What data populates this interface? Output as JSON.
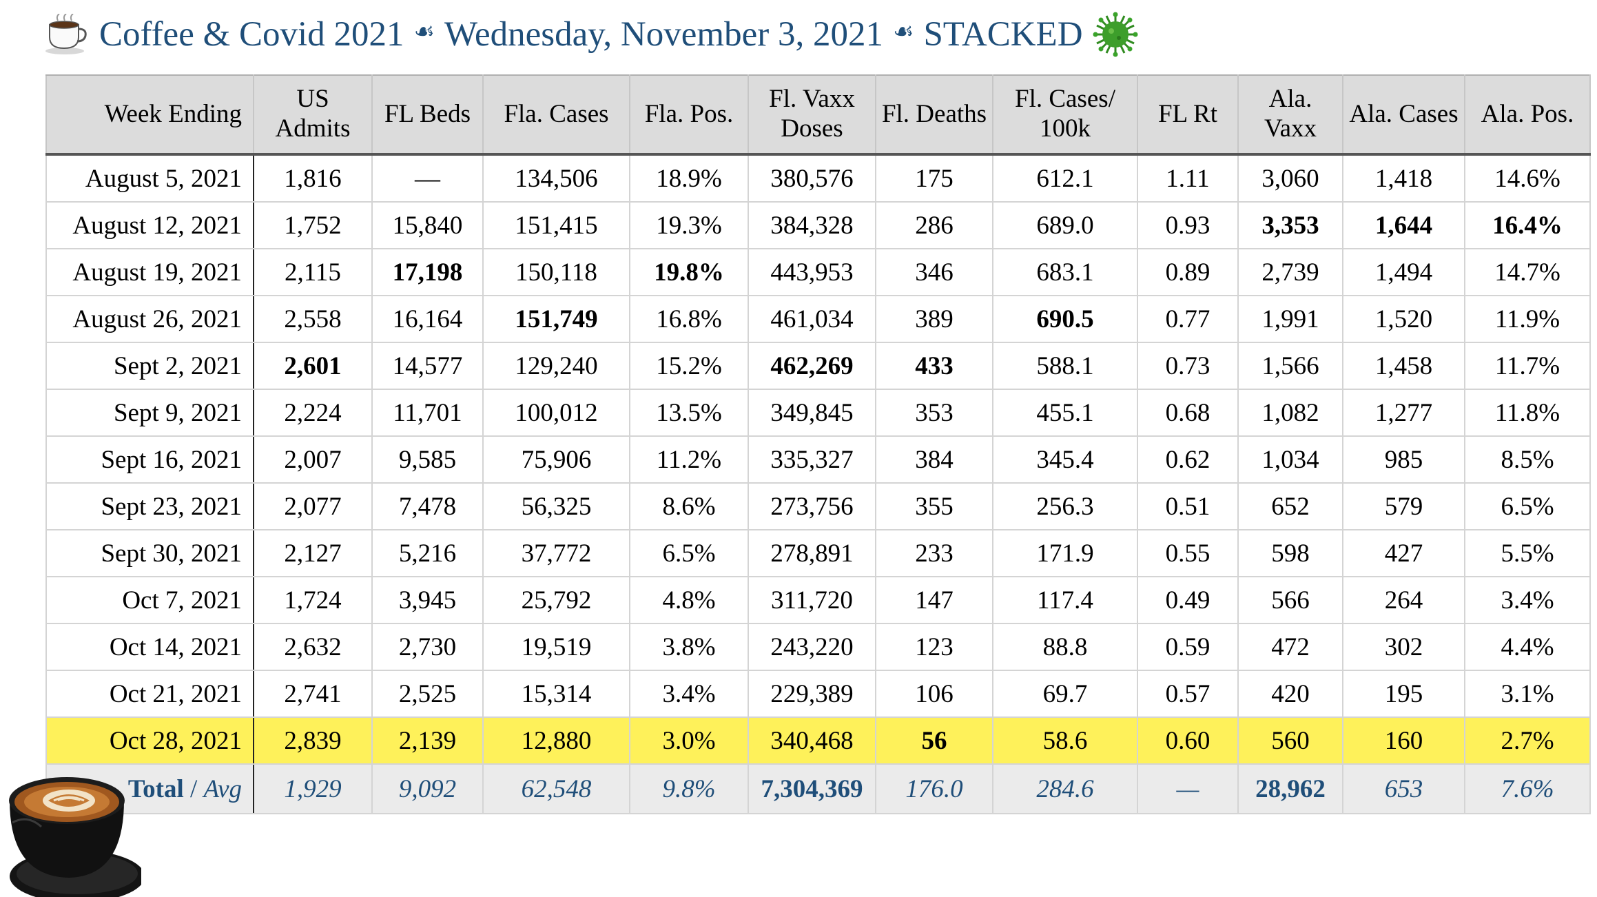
{
  "title": {
    "part1": "Coffee & Covid 2021",
    "part2": "Wednesday, November 3, 2021",
    "part3": "STACKED",
    "icons": [
      "coffee-cup-icon",
      "fleuron-icon",
      "virus-icon"
    ],
    "color": "#1f4e79"
  },
  "table": {
    "headers": [
      "Week Ending",
      "US Admits",
      "FL Beds",
      "Fla. Cases",
      "Fla. Pos.",
      "Fl. Vaxx Doses",
      "Fl. Deaths",
      "Fl. Cases/ 100k",
      "FL Rt",
      "Ala. Vaxx",
      "Ala. Cases",
      "Ala. Pos."
    ],
    "rows": [
      [
        "August 5, 2021",
        "1,816",
        "—",
        "134,506",
        "18.9%",
        "380,576",
        "175",
        "612.1",
        "1.11",
        "3,060",
        "1,418",
        "14.6%"
      ],
      [
        "August 12, 2021",
        "1,752",
        "15,840",
        "151,415",
        "19.3%",
        "384,328",
        "286",
        "689.0",
        "0.93",
        "3,353",
        "1,644",
        "16.4%"
      ],
      [
        "August 19, 2021",
        "2,115",
        "17,198",
        "150,118",
        "19.8%",
        "443,953",
        "346",
        "683.1",
        "0.89",
        "2,739",
        "1,494",
        "14.7%"
      ],
      [
        "August 26, 2021",
        "2,558",
        "16,164",
        "151,749",
        "16.8%",
        "461,034",
        "389",
        "690.5",
        "0.77",
        "1,991",
        "1,520",
        "11.9%"
      ],
      [
        "Sept 2, 2021",
        "2,601",
        "14,577",
        "129,240",
        "15.2%",
        "462,269",
        "433",
        "588.1",
        "0.73",
        "1,566",
        "1,458",
        "11.7%"
      ],
      [
        "Sept 9, 2021",
        "2,224",
        "11,701",
        "100,012",
        "13.5%",
        "349,845",
        "353",
        "455.1",
        "0.68",
        "1,082",
        "1,277",
        "11.8%"
      ],
      [
        "Sept 16, 2021",
        "2,007",
        "9,585",
        "75,906",
        "11.2%",
        "335,327",
        "384",
        "345.4",
        "0.62",
        "1,034",
        "985",
        "8.5%"
      ],
      [
        "Sept 23, 2021",
        "2,077",
        "7,478",
        "56,325",
        "8.6%",
        "273,756",
        "355",
        "256.3",
        "0.51",
        "652",
        "579",
        "6.5%"
      ],
      [
        "Sept 30, 2021",
        "2,127",
        "5,216",
        "37,772",
        "6.5%",
        "278,891",
        "233",
        "171.9",
        "0.55",
        "598",
        "427",
        "5.5%"
      ],
      [
        "Oct 7, 2021",
        "1,724",
        "3,945",
        "25,792",
        "4.8%",
        "311,720",
        "147",
        "117.4",
        "0.49",
        "566",
        "264",
        "3.4%"
      ],
      [
        "Oct 14, 2021",
        "2,632",
        "2,730",
        "19,519",
        "3.8%",
        "243,220",
        "123",
        "88.8",
        "0.59",
        "472",
        "302",
        "4.4%"
      ],
      [
        "Oct 21, 2021",
        "2,741",
        "2,525",
        "15,314",
        "3.4%",
        "229,389",
        "106",
        "69.7",
        "0.57",
        "420",
        "195",
        "3.1%"
      ],
      [
        "Oct 28, 2021",
        "2,839",
        "2,139",
        "12,880",
        "3.0%",
        "340,468",
        "56",
        "58.6",
        "0.60",
        "560",
        "160",
        "2.7%"
      ]
    ],
    "bold_cells": [
      [
        1,
        9
      ],
      [
        1,
        10
      ],
      [
        1,
        11
      ],
      [
        2,
        2
      ],
      [
        2,
        4
      ],
      [
        3,
        3
      ],
      [
        3,
        7
      ],
      [
        4,
        1
      ],
      [
        4,
        5
      ],
      [
        4,
        6
      ],
      [
        12,
        6
      ]
    ],
    "highlight_row": 12,
    "highlight_color": "#fef15a",
    "total": {
      "label_main": "Total",
      "label_sep": " / ",
      "label_avg": "Avg",
      "values": [
        "1,929",
        "9,092",
        "62,548",
        "9.8%",
        "7,304,369",
        "176.0",
        "284.6",
        "—",
        "28,962",
        "653",
        "7.6%"
      ],
      "bold_indices": [
        4,
        8
      ]
    }
  },
  "decoration": {
    "coffee_photo": "latte-art-cup"
  }
}
